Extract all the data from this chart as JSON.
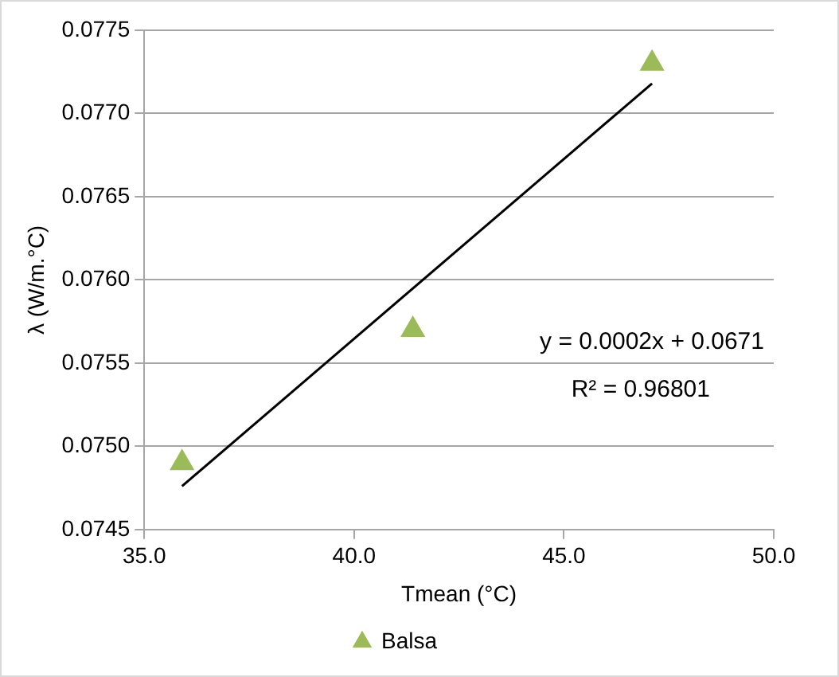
{
  "chart_data": {
    "type": "scatter",
    "xlabel": "Tmean (°C)",
    "ylabel": "λ (W/m.°C)",
    "series": [
      {
        "name": "Balsa",
        "color": "#9bbb59",
        "marker": "triangle",
        "x": [
          35.9,
          41.4,
          47.1
        ],
        "values": [
          0.0749,
          0.0757,
          0.0773
        ]
      },
      {
        "type": "line",
        "color": "#000000",
        "marker": "none",
        "line_style": "solid",
        "x": [
          35.9,
          47.1
        ],
        "values": [
          0.07476,
          0.07718
        ]
      }
    ],
    "xlim": [
      35,
      50
    ],
    "xticks": [
      {
        "value": 35,
        "label": "35.0"
      },
      {
        "value": 40,
        "label": "40.0"
      },
      {
        "value": 45,
        "label": "45.0"
      },
      {
        "value": 50,
        "label": "50.0"
      }
    ],
    "ylim": [
      0.0745,
      0.0775
    ],
    "yticks": [
      {
        "value": 0.0745,
        "label": "0.0745"
      },
      {
        "value": 0.075,
        "label": "0.0750"
      },
      {
        "value": 0.0755,
        "label": "0.0755"
      },
      {
        "value": 0.076,
        "label": "0.0760"
      },
      {
        "value": 0.0765,
        "label": "0.0765"
      },
      {
        "value": 0.077,
        "label": "0.0770"
      },
      {
        "value": 0.0775,
        "label": "0.0775"
      }
    ],
    "grid": "y",
    "legend": "bottom",
    "annotations": [
      "y = 0.0002x + 0.0671",
      "R² = 0.96801"
    ]
  }
}
